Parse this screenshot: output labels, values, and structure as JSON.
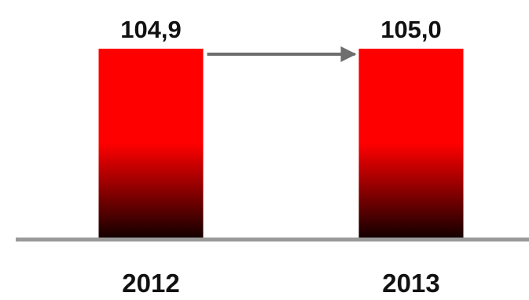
{
  "chart_data": {
    "type": "bar",
    "categories": [
      "2012",
      "2013"
    ],
    "values": [
      104.9,
      105.0
    ],
    "value_labels": [
      "104,9",
      "105,0"
    ],
    "title": "",
    "xlabel": "",
    "ylabel": "",
    "grid": false,
    "legend": "none",
    "annotations": [
      {
        "type": "arrow",
        "from": "2012",
        "to": "2013"
      }
    ]
  },
  "colors": {
    "bar_top": "#ff0000",
    "bar_bottom": "#140000",
    "baseline": "#9a9a9a",
    "arrow": "#6e6e6e",
    "text": "#111111"
  }
}
